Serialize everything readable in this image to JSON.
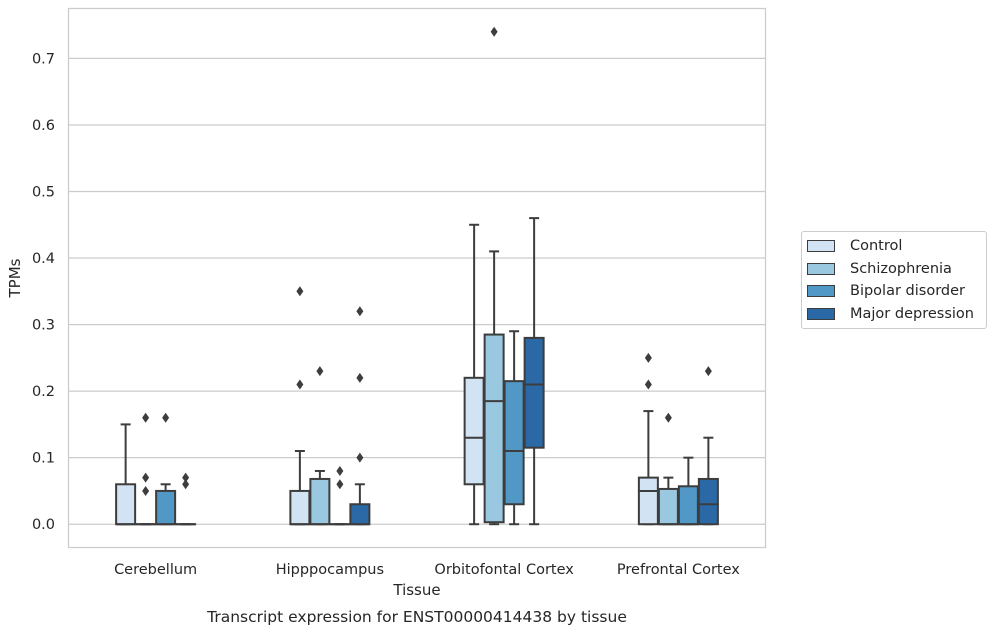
{
  "chart_data": {
    "type": "box",
    "title": "Transcript expression for ENST00000414438 by tissue",
    "xlabel": "Tissue",
    "ylabel": "TPMs",
    "ylim": [
      -0.035,
      0.775
    ],
    "yticks": [
      0.0,
      0.1,
      0.2,
      0.3,
      0.4,
      0.5,
      0.6,
      0.7
    ],
    "ytick_labels": [
      "0.0",
      "0.1",
      "0.2",
      "0.3",
      "0.4",
      "0.5",
      "0.6",
      "0.7"
    ],
    "grid": "horizontal",
    "legend_position": "right",
    "categories": [
      "Cerebellum",
      "Hipppocampus",
      "Orbitofontal Cortex",
      "Prefrontal Cortex"
    ],
    "series": [
      {
        "name": "Control",
        "color": "#d2e3f3",
        "boxes": [
          {
            "q1": 0.0,
            "median": 0.0,
            "q3": 0.06,
            "whisker_low": 0.0,
            "whisker_high": 0.15,
            "outliers": []
          },
          {
            "q1": 0.0,
            "median": 0.0,
            "q3": 0.05,
            "whisker_low": 0.0,
            "whisker_high": 0.11,
            "outliers": [
              0.21,
              0.35
            ]
          },
          {
            "q1": 0.06,
            "median": 0.13,
            "q3": 0.22,
            "whisker_low": 0.0,
            "whisker_high": 0.45,
            "outliers": []
          },
          {
            "q1": 0.0,
            "median": 0.05,
            "q3": 0.07,
            "whisker_low": 0.0,
            "whisker_high": 0.17,
            "outliers": [
              0.21,
              0.25
            ]
          }
        ]
      },
      {
        "name": "Schizophrenia",
        "color": "#9ac8e0",
        "boxes": [
          {
            "q1": 0.0,
            "median": 0.0,
            "q3": 0.0,
            "whisker_low": 0.0,
            "whisker_high": 0.0,
            "outliers": [
              0.05,
              0.07,
              0.16
            ]
          },
          {
            "q1": 0.0,
            "median": 0.0,
            "q3": 0.068,
            "whisker_low": 0.0,
            "whisker_high": 0.08,
            "outliers": [
              0.23
            ]
          },
          {
            "q1": 0.003,
            "median": 0.185,
            "q3": 0.285,
            "whisker_low": 0.0,
            "whisker_high": 0.41,
            "outliers": [
              0.74
            ]
          },
          {
            "q1": 0.0,
            "median": 0.0,
            "q3": 0.053,
            "whisker_low": 0.0,
            "whisker_high": 0.07,
            "outliers": [
              0.16
            ]
          }
        ]
      },
      {
        "name": "Bipolar disorder",
        "color": "#5298c6",
        "boxes": [
          {
            "q1": 0.0,
            "median": 0.0,
            "q3": 0.05,
            "whisker_low": 0.0,
            "whisker_high": 0.06,
            "outliers": [
              0.16
            ]
          },
          {
            "q1": 0.0,
            "median": 0.0,
            "q3": 0.0,
            "whisker_low": 0.0,
            "whisker_high": 0.0,
            "outliers": [
              0.06,
              0.08
            ]
          },
          {
            "q1": 0.03,
            "median": 0.11,
            "q3": 0.215,
            "whisker_low": 0.0,
            "whisker_high": 0.29,
            "outliers": []
          },
          {
            "q1": 0.0,
            "median": 0.0,
            "q3": 0.057,
            "whisker_low": 0.0,
            "whisker_high": 0.1,
            "outliers": []
          }
        ]
      },
      {
        "name": "Major depression",
        "color": "#2a69a6",
        "boxes": [
          {
            "q1": 0.0,
            "median": 0.0,
            "q3": 0.0,
            "whisker_low": 0.0,
            "whisker_high": 0.0,
            "outliers": [
              0.06,
              0.07
            ]
          },
          {
            "q1": 0.0,
            "median": 0.0,
            "q3": 0.03,
            "whisker_low": 0.0,
            "whisker_high": 0.06,
            "outliers": [
              0.1,
              0.22,
              0.32
            ]
          },
          {
            "q1": 0.115,
            "median": 0.21,
            "q3": 0.28,
            "whisker_low": 0.0,
            "whisker_high": 0.46,
            "outliers": []
          },
          {
            "q1": 0.0,
            "median": 0.03,
            "q3": 0.068,
            "whisker_low": 0.0,
            "whisker_high": 0.13,
            "outliers": [
              0.23
            ]
          }
        ]
      }
    ]
  }
}
